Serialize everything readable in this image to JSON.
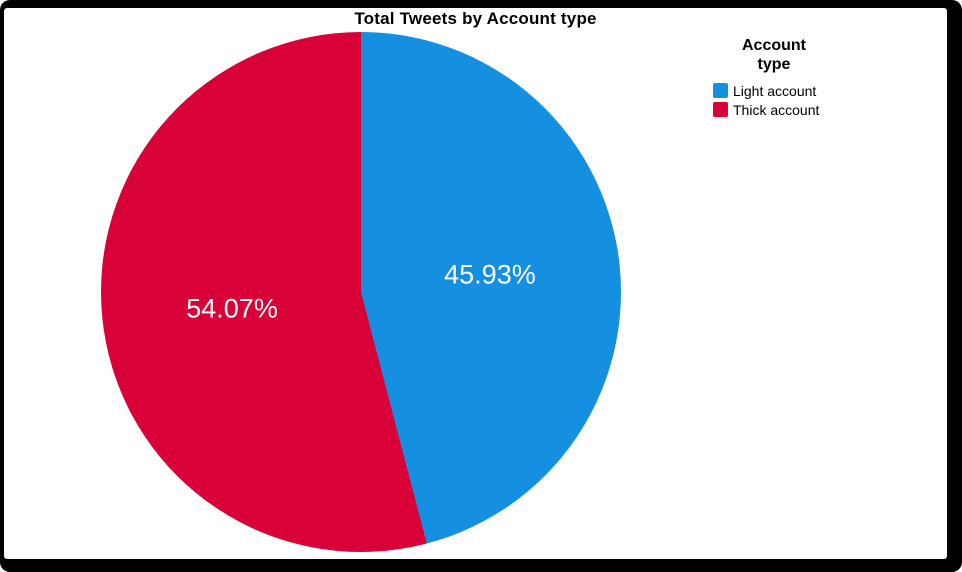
{
  "window": {
    "frame_color": "#000000",
    "plot_background": "#ffffff"
  },
  "chart_data": {
    "type": "pie",
    "title": "Total Tweets by Account type",
    "legend_title": "Account type",
    "legend_position": "right",
    "direction": "clockwise",
    "start_angle_deg": 0,
    "label_color": "#ffffff",
    "slices": [
      {
        "label": "Light account",
        "value": 45.93,
        "display": "45.93%",
        "color": "#1590E0"
      },
      {
        "label": "Thick account",
        "value": 54.07,
        "display": "54.07%",
        "color": "#D90238"
      }
    ]
  }
}
